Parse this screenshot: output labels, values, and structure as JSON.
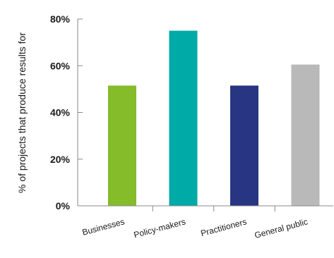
{
  "chart_data": {
    "type": "bar",
    "categories": [
      "Businesses",
      "Policy-makers",
      "Practitioners",
      "General public"
    ],
    "values": [
      51.5,
      75,
      51.5,
      60.5
    ],
    "colors": [
      "#84bc2a",
      "#00aaa6",
      "#283583",
      "#b9b9b9"
    ],
    "title": "",
    "xlabel": "",
    "ylabel": "% of projects that produce results for",
    "ylim": [
      0,
      80
    ],
    "yticks": [
      "0%",
      "20%",
      "40%",
      "60%",
      "80%"
    ],
    "ytick_values": [
      0,
      20,
      40,
      60,
      80
    ],
    "grid": false,
    "legend": "none"
  }
}
